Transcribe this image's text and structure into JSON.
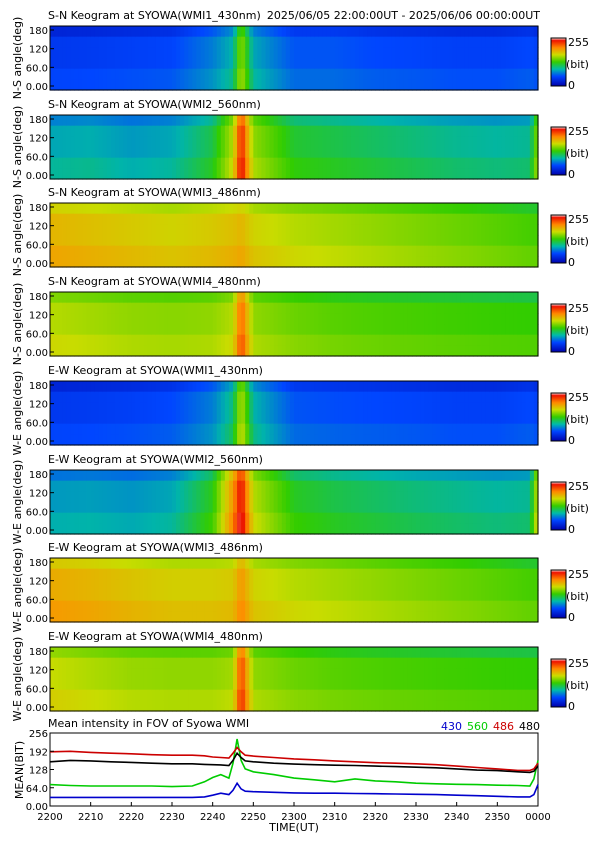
{
  "header": {
    "first_title": "S-N Keogram at SYOWA(WMI1_430nm)",
    "time_range": "2025/06/05 22:00:00UT - 2025/06/06 00:00:00UT"
  },
  "colorbar": {
    "max_label": "255",
    "unit_label": "(bit)",
    "min_label": "0"
  },
  "colors": {
    "low": "#0000cc",
    "mid": "#00cc00",
    "high": "#ff0000",
    "peak": "#ffffff"
  },
  "chart_data": [
    {
      "type": "heatmap",
      "title": "S-N Keogram at SYOWA(WMI1_430nm)",
      "ylabel": "N-S angle(deg)",
      "yticks": [
        "180",
        "120",
        "60.0",
        "0.00"
      ],
      "ylim": [
        0,
        180
      ],
      "colorbar_range": [
        0,
        255
      ],
      "x": [
        2200,
        2210,
        2220,
        2230,
        2240,
        2245,
        2247,
        2250,
        2300,
        2310,
        2320,
        2330,
        2340,
        2350,
        2358,
        2400
      ],
      "intensity": [
        40,
        42,
        45,
        48,
        70,
        90,
        150,
        85,
        55,
        55,
        50,
        48,
        45,
        45,
        50,
        45
      ]
    },
    {
      "type": "heatmap",
      "title": "S-N Keogram at SYOWA(WMI2_560nm)",
      "ylabel": "N-S angle(deg)",
      "yticks": [
        "180",
        "120",
        "60.0",
        "0.00"
      ],
      "ylim": [
        0,
        180
      ],
      "colorbar_range": [
        0,
        255
      ],
      "x": [
        2200,
        2210,
        2220,
        2230,
        2240,
        2245,
        2247,
        2250,
        2300,
        2310,
        2320,
        2330,
        2340,
        2350,
        2358,
        2400
      ],
      "intensity": [
        85,
        88,
        80,
        85,
        110,
        160,
        240,
        150,
        115,
        110,
        105,
        100,
        95,
        92,
        95,
        150
      ]
    },
    {
      "type": "heatmap",
      "title": "S-N Keogram at SYOWA(WMI3_486nm)",
      "ylabel": "N-S angle(deg)",
      "yticks": [
        "180",
        "120",
        "60.0",
        "0.00"
      ],
      "ylim": [
        0,
        180
      ],
      "colorbar_range": [
        0,
        255
      ],
      "x": [
        2200,
        2210,
        2220,
        2230,
        2240,
        2245,
        2247,
        2250,
        2300,
        2310,
        2320,
        2330,
        2340,
        2350,
        2358,
        2400
      ],
      "intensity": [
        185,
        180,
        175,
        170,
        175,
        180,
        185,
        170,
        160,
        155,
        150,
        145,
        140,
        135,
        130,
        130
      ]
    },
    {
      "type": "heatmap",
      "title": "S-N Keogram at SYOWA(WMI4_480nm)",
      "ylabel": "N-S angle(deg)",
      "yticks": [
        "180",
        "120",
        "60.0",
        "0.00"
      ],
      "ylim": [
        0,
        180
      ],
      "colorbar_range": [
        0,
        255
      ],
      "x": [
        2200,
        2210,
        2220,
        2230,
        2240,
        2245,
        2247,
        2250,
        2300,
        2310,
        2320,
        2330,
        2340,
        2350,
        2358,
        2400
      ],
      "intensity": [
        160,
        155,
        150,
        148,
        150,
        160,
        220,
        150,
        140,
        135,
        132,
        130,
        128,
        126,
        125,
        125
      ]
    },
    {
      "type": "heatmap",
      "title": "E-W Keogram at SYOWA(WMI1_430nm)",
      "ylabel": "W-E angle(deg)",
      "yticks": [
        "180",
        "120",
        "60.0",
        "0.00"
      ],
      "ylim": [
        0,
        180
      ],
      "colorbar_range": [
        0,
        255
      ],
      "x": [
        2200,
        2210,
        2220,
        2230,
        2240,
        2245,
        2247,
        2250,
        2300,
        2310,
        2320,
        2330,
        2340,
        2350,
        2358,
        2400
      ],
      "intensity": [
        40,
        42,
        45,
        50,
        70,
        100,
        160,
        90,
        55,
        52,
        50,
        48,
        45,
        45,
        50,
        45
      ]
    },
    {
      "type": "heatmap",
      "title": "E-W Keogram at SYOWA(WMI2_560nm)",
      "ylabel": "W-E angle(deg)",
      "yticks": [
        "180",
        "120",
        "60.0",
        "0.00"
      ],
      "ylim": [
        0,
        180
      ],
      "colorbar_range": [
        0,
        255
      ],
      "x": [
        2200,
        2210,
        2220,
        2230,
        2240,
        2245,
        2247,
        2250,
        2300,
        2310,
        2320,
        2330,
        2340,
        2350,
        2358,
        2400
      ],
      "intensity": [
        80,
        82,
        78,
        85,
        120,
        200,
        245,
        160,
        118,
        110,
        105,
        100,
        96,
        92,
        95,
        170
      ]
    },
    {
      "type": "heatmap",
      "title": "E-W Keogram at SYOWA(WMI3_486nm)",
      "ylabel": "W-E angle(deg)",
      "yticks": [
        "180",
        "120",
        "60.0",
        "0.00"
      ],
      "ylim": [
        0,
        180
      ],
      "colorbar_range": [
        0,
        255
      ],
      "x": [
        2200,
        2210,
        2220,
        2230,
        2240,
        2245,
        2247,
        2250,
        2300,
        2310,
        2320,
        2330,
        2340,
        2350,
        2358,
        2400
      ],
      "intensity": [
        190,
        185,
        178,
        172,
        172,
        175,
        200,
        170,
        160,
        155,
        150,
        145,
        140,
        135,
        130,
        130
      ]
    },
    {
      "type": "heatmap",
      "title": "E-W Keogram at SYOWA(WMI4_480nm)",
      "ylabel": "W-E angle(deg)",
      "yticks": [
        "180",
        "120",
        "60.0",
        "0.00"
      ],
      "ylim": [
        0,
        180
      ],
      "colorbar_range": [
        0,
        255
      ],
      "x": [
        2200,
        2210,
        2220,
        2230,
        2240,
        2245,
        2247,
        2250,
        2300,
        2310,
        2320,
        2330,
        2340,
        2350,
        2358,
        2400
      ],
      "intensity": [
        165,
        158,
        152,
        150,
        150,
        155,
        230,
        150,
        140,
        135,
        132,
        130,
        128,
        126,
        125,
        125
      ]
    },
    {
      "type": "line",
      "title": "Mean intensity in FOV of Syowa WMI",
      "xlabel": "TIME(UT)",
      "ylabel": "MEAN(BIT)",
      "xticks": [
        "2200",
        "2210",
        "2220",
        "2230",
        "2240",
        "2250",
        "2300",
        "2310",
        "2320",
        "2330",
        "2340",
        "2350",
        "0000"
      ],
      "yticks": [
        "256",
        "192",
        "128",
        "64.0",
        "0.00"
      ],
      "ylim": [
        0,
        256
      ],
      "xlim": [
        0,
        120
      ],
      "x": [
        0,
        5,
        10,
        15,
        20,
        25,
        30,
        35,
        38,
        40,
        42,
        44,
        45,
        46,
        47,
        48,
        50,
        55,
        60,
        65,
        70,
        75,
        80,
        85,
        90,
        95,
        100,
        105,
        110,
        115,
        118,
        119,
        120
      ],
      "series": [
        {
          "name": "430",
          "color": "#0000cc",
          "values": [
            30,
            30,
            30,
            30,
            30,
            30,
            30,
            30,
            32,
            38,
            45,
            40,
            55,
            80,
            60,
            52,
            50,
            48,
            46,
            45,
            45,
            44,
            43,
            42,
            41,
            40,
            38,
            36,
            34,
            32,
            32,
            40,
            75
          ]
        },
        {
          "name": "560",
          "color": "#00cc00",
          "values": [
            75,
            72,
            70,
            70,
            70,
            70,
            68,
            70,
            85,
            100,
            110,
            98,
            150,
            235,
            160,
            130,
            120,
            110,
            98,
            92,
            85,
            95,
            88,
            85,
            80,
            78,
            76,
            75,
            73,
            72,
            70,
            95,
            160
          ]
        },
        {
          "name": "486",
          "color": "#cc0000",
          "values": [
            190,
            192,
            188,
            185,
            183,
            180,
            178,
            178,
            176,
            172,
            170,
            168,
            185,
            205,
            190,
            178,
            175,
            170,
            165,
            162,
            158,
            155,
            152,
            150,
            148,
            145,
            140,
            135,
            130,
            125,
            125,
            130,
            150
          ]
        },
        {
          "name": "480",
          "color": "#000000",
          "values": [
            155,
            160,
            158,
            155,
            153,
            150,
            148,
            148,
            146,
            145,
            144,
            142,
            160,
            185,
            170,
            158,
            155,
            150,
            147,
            145,
            143,
            142,
            140,
            138,
            136,
            134,
            130,
            126,
            124,
            120,
            118,
            122,
            140
          ]
        }
      ]
    }
  ]
}
